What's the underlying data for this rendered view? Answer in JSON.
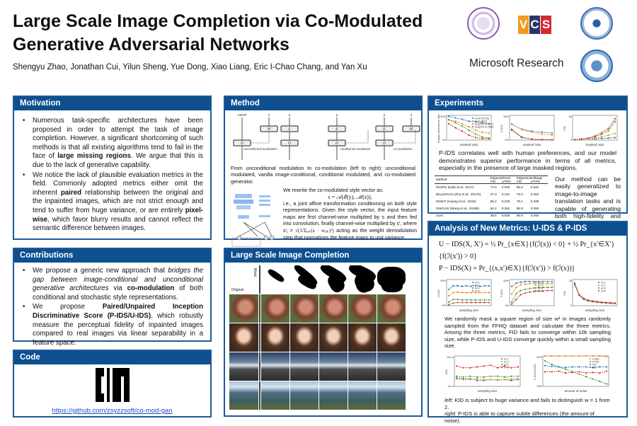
{
  "header": {
    "title": "Large Scale Image Completion via Co-Modulated Generative Adversarial Networks",
    "authors": "Shengyu Zhao, Jonathan Cui, Yilun Sheng, Yue Dong, Xiao Liang, Eric I-Chao Chang, and Yan Xu",
    "logos": [
      "Tsinghua University seal",
      "VCS",
      "Yao Class seal",
      "Microsoft Research",
      "Beihang University seal"
    ],
    "msr": "Microsoft Research",
    "vcs": [
      "V",
      "C",
      "S"
    ]
  },
  "colors": {
    "panel_header": "#0d4f8f",
    "panel_border": "#1d5a9a",
    "vcs_orange": "#f39a1e",
    "vcs_navy": "#27366b",
    "vcs_red": "#d7282f"
  },
  "motivation": {
    "title": "Motivation",
    "b1": [
      "Numerous task-specific architectures have been proposed in order to attempt the task of image completion. However, a significant shortcoming of such methods is that all existing algorithms tend to fail in the face of ",
      "large missing regions",
      ". We argue that this is due to the lack of generative capability."
    ],
    "b2": [
      "We notice the lack of plausible evaluation metrics in the field. Commonly adopted metrics either omit the inherent ",
      "paired",
      " relationship between the original and the inpainted images, which are not strict enough and tend to suffer from huge variance, or are entirely ",
      "pixel-wise",
      ", which favor blurry results and cannot reflect the semantic difference between images."
    ]
  },
  "contributions": {
    "title": "Contributions",
    "b1": [
      "We propose a generic new approach that ",
      "bridges the gap between image-conditional and unconditional generative architectures",
      " via ",
      "co-modulation",
      " of both conditional and stochastic style representations."
    ],
    "b2": [
      "We propose ",
      "Paired/Unpaired Inception Discriminative Score (P-IDS/U-IDS)",
      ", which robustly measure the perceptual fidelity of inpainted images compared to real images via linear separability in a feature space."
    ]
  },
  "code": {
    "title": "Code",
    "link": "https://github.com/zsyzzsoft/co-mod-gan"
  },
  "method": {
    "title": "Method",
    "diagrams": [
      {
        "top": [
          "const",
          "z"
        ],
        "boxes": [
          "D",
          "M"
        ],
        "note": "unconditional modulation"
      },
      {
        "top": [
          "y"
        ],
        "boxes": [
          "E",
          "D"
        ],
        "note": ""
      },
      {
        "top": [
          "y"
        ],
        "boxes": [
          "E",
          "D"
        ],
        "note": "conditional modulation"
      },
      {
        "top": [
          "y",
          "z"
        ],
        "boxes": [
          "E",
          "M",
          "D"
        ],
        "note": "co-modulation"
      }
    ],
    "caption": "From unconditional modulation to co-modulation (left to right): unconditional modulated, vanilla image-conditional, conditional modulated, and co-modulated generator.",
    "text1": "We rewrite the co-modulated style vector as:",
    "formula": "s = 𝒜(ℰ(y), ℳ(z)),",
    "text2": "i.e., a joint affine transformation conditioning on both style representations. Given the style vector, the input feature maps are first channel-wise multiplied by s and then fed into convolution, finally channel-wise multiplied by s′, where s′ⱼ =",
    "formula2": "√(1/Σᵢ,ₖ(sᵢ · wᵢⱼₖ)²)",
    "text3": " acting as the weight demodulation step that normalizes the feature maps to unit variance."
  },
  "completion": {
    "title": "Large Scale Image Completion",
    "mask_label": "Mask",
    "original_label": "Original"
  },
  "experiments": {
    "title": "Experiments",
    "caption": "P-IDS correlates well with human preferences, and our model demonstrates superior performance in terms of all metrics, especially in the presence of large masked regions.",
    "side_text": "Our method can be easily generalized to image-to-image translation tasks and is capable of generating both high-fidelity and diverse images.",
    "table": {
      "groups": [
        "Edges2Shoes",
        "Edges2Handbags"
      ],
      "cols": [
        "Method",
        "FID",
        "LPIPS",
        "FID",
        "LPIPS"
      ],
      "rows": [
        [
          "Pix2Pix (Isola et al., 2017)",
          "74.2",
          "0.040",
          "95.6",
          "0.042"
        ],
        [
          "BicycleGAN (Zhu et al., 2017b)",
          "47.3",
          "0.191",
          "76.0",
          "0.252"
        ],
        [
          "MUNIT (Huang et al., 2018)",
          "56.2",
          "0.229",
          "79.1",
          "0.339"
        ],
        [
          "StarGAN (Wang et al., 2019b)",
          "64.2",
          "0.262",
          "88.8",
          "0.260"
        ],
        [
          "Ours",
          "38.5",
          "0.036",
          "56.9",
          "0.045"
        ],
        [
          "Ours (w = 3)",
          "38.8",
          "0.030",
          "71.1",
          "0.379"
        ]
      ]
    }
  },
  "analysis": {
    "title": "Analysis of New Metrics: U-IDS & P-IDS",
    "eq1": "U − IDS(X, X′) = ½ Pr_{x∈X}{f(ℐ(x)) < 0} + ½ Pr_{x′∈X′}{f(ℐ(x′)) > 0}",
    "eq2": "P − IDS(X) = Pr_{(x,x′)∈X}{f(ℐ(x′)) > f(ℐ(x))}",
    "caption1": "We randomly mask a square region of size w² in images randomly sampled from the FFHQ dataset and calculate the three metrics. Among the three metrics, FID fails to converge within 10k sampling size, while P-IDS and U-IDS converge quickly within a small sampling size.",
    "caption2a": "left",
    ":": "",
    "caption2b": ": KID is subject to huge variance and fails to distinguish w = 1 from 2.",
    "caption2c": "right",
    "caption2d": ": P-IDS is able to capture subtle differences (the amount of noise)."
  },
  "chart_data": [
    {
      "id": "exp1",
      "type": "line",
      "xlabel": "masked ratio",
      "ylabel": "human preference rate",
      "ylim": [
        0,
        50
      ],
      "ytick_labels": [
        "0%",
        "50%"
      ],
      "series": [
        {
          "name": "Ours (P-IDS)",
          "color": "#1f77b4",
          "values": [
            48,
            45,
            42,
            38,
            37,
            35,
            33
          ]
        },
        {
          "name": "Ours (Rnd)",
          "color": "#ff7f0e",
          "values": [
            41,
            38,
            33,
            27,
            20,
            16,
            14
          ]
        },
        {
          "name": "DeepFill v2 (P-IDS)",
          "color": "#2ca02c",
          "values": [
            41,
            35,
            28,
            20,
            12,
            6,
            4
          ]
        },
        {
          "name": "DeepFill v2 (Rnd)",
          "color": "#d62728",
          "values": [
            33,
            25,
            18,
            10,
            5,
            3,
            3
          ]
        }
      ]
    },
    {
      "id": "exp2",
      "type": "line",
      "xlabel": "masked ratio",
      "ylabel": "P-IDS",
      "ylim": [
        0,
        50
      ],
      "ytick_labels": [
        "0%",
        "50%"
      ],
      "series": [
        {
          "color": "#1f77b4",
          "values": [
            32,
            22,
            18,
            16,
            14
          ]
        },
        {
          "color": "#ff7f0e",
          "values": [
            33,
            21,
            16,
            12,
            10
          ]
        },
        {
          "color": "#2ca02c",
          "values": [
            20,
            5,
            2,
            1,
            1
          ]
        },
        {
          "color": "#d62728",
          "values": [
            22,
            6,
            2,
            1,
            1
          ]
        }
      ]
    },
    {
      "id": "exp3",
      "type": "line",
      "xlabel": "masked ratio",
      "ylabel": "FID",
      "ylim": [
        0,
        60
      ],
      "ytick_labels": [
        "0",
        "60"
      ],
      "series": [
        {
          "color": "#1f77b4",
          "values": [
            1,
            2,
            3,
            3,
            4,
            5,
            6
          ]
        },
        {
          "color": "#ff7f0e",
          "values": [
            1,
            2,
            3,
            5,
            8,
            12,
            16
          ]
        },
        {
          "color": "#2ca02c",
          "values": [
            1,
            2,
            4,
            8,
            14,
            22,
            45
          ]
        },
        {
          "color": "#d62728",
          "values": [
            1,
            3,
            5,
            10,
            18,
            28,
            52
          ]
        }
      ]
    },
    {
      "id": "an1",
      "type": "line",
      "xlabel": "sampling size",
      "ylabel": "U-IDS",
      "ylim": [
        0,
        50
      ],
      "ytick_labels": [
        "0%",
        "50%"
      ],
      "series": [
        {
          "name": "w=1",
          "color": "#1f77b4",
          "values": [
            31,
            38,
            38,
            37,
            38,
            37,
            38,
            37,
            38,
            38
          ]
        },
        {
          "name": "w=2",
          "color": "#ff7f0e",
          "values": [
            19,
            25,
            26,
            25,
            25,
            25,
            25,
            25,
            25,
            25
          ]
        },
        {
          "name": "w=4",
          "color": "#2ca02c",
          "values": [
            7,
            12,
            12,
            11,
            11,
            11,
            11,
            11,
            11,
            11
          ]
        },
        {
          "name": "w=8",
          "color": "#d62728",
          "values": [
            2,
            5,
            6,
            6,
            6,
            6,
            6,
            6,
            6,
            6
          ]
        }
      ]
    },
    {
      "id": "an2",
      "type": "line",
      "xlabel": "sampling size",
      "ylabel": "P-IDS",
      "ylim": [
        0,
        50
      ],
      "ytick_labels": [
        "0%",
        "50%"
      ],
      "series": [
        {
          "name": "w=1",
          "color": "#1f77b4",
          "values": [
            37,
            43,
            45,
            46,
            46,
            46,
            46,
            46,
            46,
            46
          ]
        },
        {
          "name": "w=2",
          "color": "#ff7f0e",
          "values": [
            22,
            35,
            40,
            41,
            42,
            42,
            42,
            42,
            42,
            42
          ]
        },
        {
          "name": "w=4",
          "color": "#2ca02c",
          "values": [
            7,
            23,
            29,
            31,
            33,
            34,
            35,
            35,
            35,
            35
          ]
        },
        {
          "name": "w=8",
          "color": "#d62728",
          "values": [
            3,
            12,
            21,
            24,
            26,
            27,
            28,
            28,
            29,
            29
          ]
        }
      ]
    },
    {
      "id": "an3",
      "type": "line",
      "xlabel": "sampling size",
      "ylabel": "FID",
      "ylim": [
        0,
        25
      ],
      "ytick_labels": [
        "0",
        "25"
      ],
      "series": [
        {
          "name": "w=1",
          "color": "#1f77b4",
          "values": [
            20,
            10,
            6,
            4.5,
            3.8,
            3.2,
            2.8,
            2.5,
            2.2,
            2
          ]
        },
        {
          "name": "w=2",
          "color": "#ff7f0e",
          "values": [
            21,
            10,
            6.3,
            4.8,
            4,
            3.4,
            3,
            2.7,
            2.4,
            2.2
          ]
        },
        {
          "name": "w=4",
          "color": "#2ca02c",
          "values": [
            20.5,
            10.2,
            6.5,
            5,
            4.2,
            3.6,
            3.2,
            2.9,
            2.6,
            2.4
          ]
        },
        {
          "name": "w=8",
          "color": "#d62728",
          "values": [
            21.5,
            10.5,
            7,
            5.3,
            4.5,
            3.9,
            3.4,
            3.1,
            2.8,
            2.6
          ]
        }
      ]
    },
    {
      "id": "kid1",
      "type": "line",
      "xlabel": "sampling size",
      "ylabel": "KID",
      "ylim": [
        -4,
        14
      ],
      "ytick_labels": [
        "-4e-4",
        "14e-4"
      ],
      "series": [
        {
          "name": "w=1",
          "color": "#1f77b4",
          "values": [
            1,
            0.5,
            0.5,
            -0.5,
            -0.5,
            0,
            -0.3,
            0,
            -0.5,
            0
          ]
        },
        {
          "name": "w=2",
          "color": "#ff7f0e",
          "values": [
            0.5,
            0,
            0,
            0.5,
            0,
            0,
            0,
            0,
            0.3,
            0.5
          ]
        },
        {
          "name": "w=4",
          "color": "#2ca02c",
          "values": [
            2,
            1.5,
            2,
            1.5,
            1.5,
            2,
            2,
            1.5,
            2,
            2
          ]
        },
        {
          "name": "w=8",
          "color": "#d62728",
          "values": [
            8,
            7,
            7,
            7.5,
            8,
            8.5,
            7,
            8,
            7,
            7.5
          ]
        }
      ]
    },
    {
      "id": "kid2",
      "type": "line",
      "xlabel": "amount of noise",
      "ylabel": "P-IDS/U-IDS",
      "ylim": [
        25,
        50
      ],
      "ytick_labels": [
        "25%",
        "50%"
      ],
      "series": [
        {
          "name": "U-IDS",
          "color": "#ff7f0e",
          "values": [
            50,
            50,
            50,
            50,
            50,
            50,
            50,
            50,
            50,
            49.5
          ]
        },
        {
          "name": "P-IDS",
          "color": "#2ca02c",
          "values": [
            46,
            43,
            41,
            39,
            37,
            35,
            33,
            31,
            29,
            27
          ]
        },
        {
          "name": "FID",
          "color": "#1f77b4",
          "values": [
            42,
            41.5,
            41,
            40.5,
            41,
            41,
            41,
            40.5,
            41,
            41
          ]
        },
        {
          "name": "KID",
          "color": "#d62728",
          "values": [
            37,
            37,
            37.5,
            36,
            36.5,
            37,
            36,
            36.5,
            36,
            37.5
          ]
        }
      ]
    }
  ]
}
